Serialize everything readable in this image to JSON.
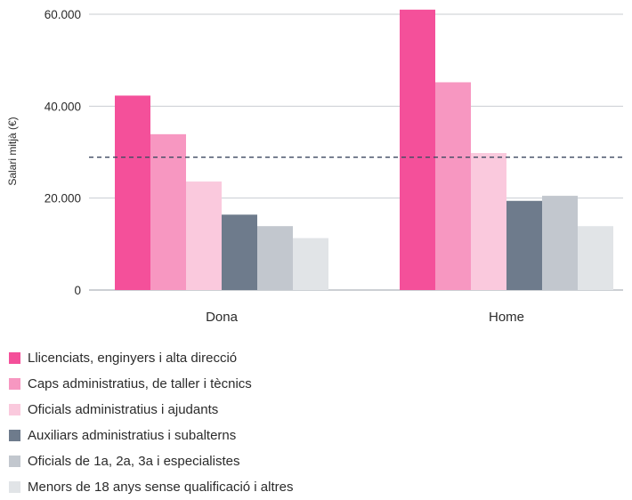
{
  "chart_data": {
    "type": "bar",
    "categories": [
      "Dona",
      "Home"
    ],
    "ylabel": "Salari mitjà (€)",
    "xlabel": "",
    "ylim": [
      0,
      60000
    ],
    "yticks": [
      0,
      20000,
      40000,
      60000
    ],
    "ytick_labels": [
      "0",
      "20.000",
      "40.000",
      "60.000"
    ],
    "grid": true,
    "reference_line": {
      "value": 28900,
      "style": "dashed",
      "color": "#3e4a61"
    },
    "legend_position": "bottom-left",
    "series": [
      {
        "name": "Llicenciats, enginyers i alta direcció",
        "color": "#f4509a",
        "values": [
          42300,
          61000
        ]
      },
      {
        "name": "Caps administratius, de taller i tècnics",
        "color": "#f797c1",
        "values": [
          33900,
          45200
        ]
      },
      {
        "name": "Oficials administratius i ajudants",
        "color": "#fac9dd",
        "values": [
          23600,
          29800
        ]
      },
      {
        "name": "Auxiliars administratius i subalterns",
        "color": "#6e7b8c",
        "values": [
          16400,
          19400
        ]
      },
      {
        "name": "Oficials de 1a, 2a, 3a i especialistes",
        "color": "#c2c7ce",
        "values": [
          13900,
          20500
        ]
      },
      {
        "name": "Menors de 18 anys sense qualificació i altres",
        "color": "#e1e4e7",
        "values": [
          11300,
          13900
        ]
      }
    ]
  }
}
